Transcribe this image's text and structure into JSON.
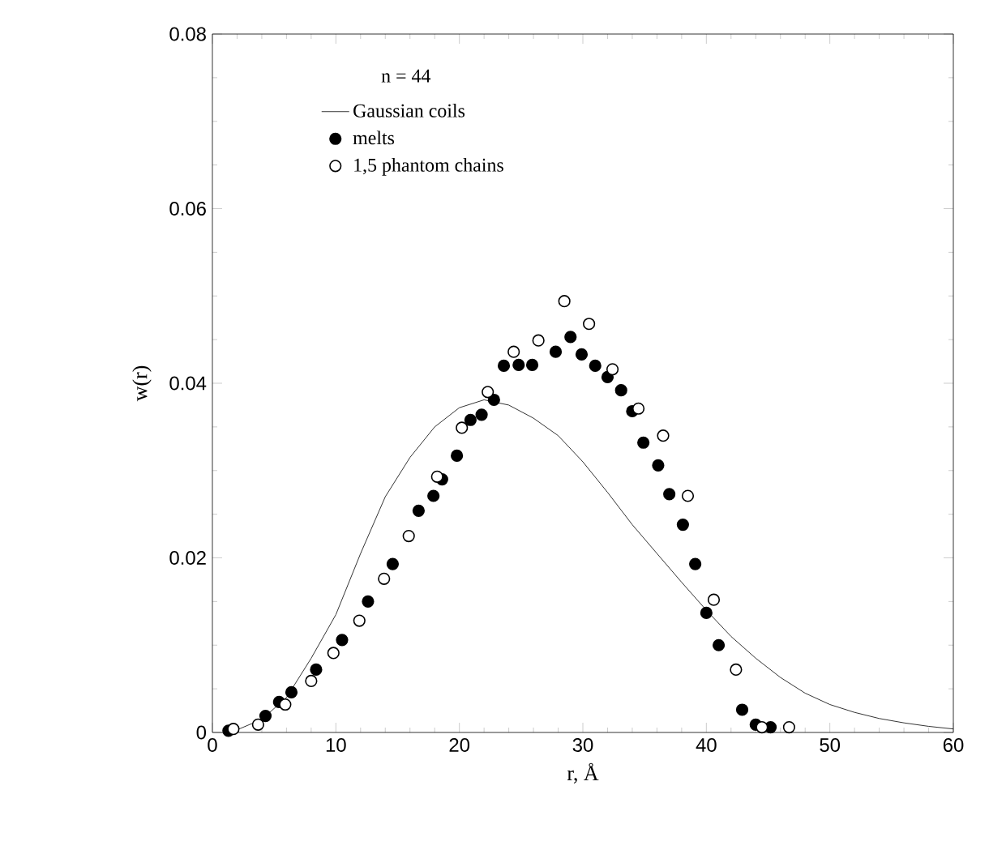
{
  "chart_data": {
    "type": "scatter",
    "xlabel": "r, Å",
    "ylabel": "w(r)",
    "xlim": [
      0,
      60
    ],
    "ylim": [
      0,
      0.08
    ],
    "xticks": [
      0,
      10,
      20,
      30,
      40,
      50,
      60
    ],
    "yticks": [
      0,
      0.02,
      0.04,
      0.06,
      0.08
    ],
    "grid": false,
    "legend": "top left",
    "marker": "circle",
    "annotations": [
      "n = 44"
    ],
    "series": [
      {
        "name": "Gaussian coils",
        "type": "line",
        "color": "#000000",
        "marker": "none",
        "line_style": "solid",
        "x": [
          1.5,
          4,
          6,
          8,
          10,
          12,
          14,
          16,
          18,
          20,
          22,
          24,
          26,
          28,
          30,
          32,
          34,
          36,
          38,
          40,
          42,
          44,
          46,
          48,
          50,
          52,
          54,
          56,
          58,
          60
        ],
        "values": [
          0,
          0.0015,
          0.004,
          0.0085,
          0.0135,
          0.0205,
          0.027,
          0.0315,
          0.035,
          0.0372,
          0.0381,
          0.0375,
          0.036,
          0.034,
          0.031,
          0.0275,
          0.0238,
          0.0205,
          0.0172,
          0.014,
          0.011,
          0.0085,
          0.0063,
          0.0045,
          0.0032,
          0.0023,
          0.0016,
          0.0011,
          0.0007,
          0.0004
        ]
      },
      {
        "name": "melts",
        "color": "#000000",
        "x": [
          1.3,
          4.3,
          5.4,
          6.4,
          8.4,
          10.5,
          12.6,
          14.6,
          16.7,
          17.9,
          18.6,
          19.8,
          20.9,
          21.8,
          22.8,
          23.6,
          24.8,
          25.9,
          27.8,
          29.0,
          29.9,
          31.0,
          32.0,
          33.1,
          34.0,
          34.9,
          36.1,
          37.0,
          38.1,
          39.1,
          40.0,
          41.0,
          42.9,
          44.0,
          45.2
        ],
        "values": [
          0.0002,
          0.0019,
          0.0035,
          0.0046,
          0.0072,
          0.0106,
          0.015,
          0.0193,
          0.0254,
          0.0271,
          0.029,
          0.0317,
          0.0358,
          0.0364,
          0.0381,
          0.042,
          0.0421,
          0.0421,
          0.0436,
          0.0453,
          0.0433,
          0.042,
          0.0407,
          0.0392,
          0.0368,
          0.0332,
          0.0306,
          0.0273,
          0.0238,
          0.0193,
          0.0137,
          0.01,
          0.0026,
          0.0009,
          0.0006
        ]
      },
      {
        "name": "1,5 phantom chains",
        "color": "#ffffff",
        "x": [
          1.7,
          3.7,
          5.9,
          8.0,
          9.8,
          11.9,
          13.9,
          15.9,
          18.2,
          20.2,
          22.3,
          24.4,
          26.4,
          28.5,
          30.5,
          32.4,
          34.5,
          36.5,
          38.5,
          40.6,
          42.4,
          44.5,
          46.7
        ],
        "values": [
          0.0004,
          0.0009,
          0.0032,
          0.0059,
          0.0091,
          0.0128,
          0.0176,
          0.0225,
          0.0293,
          0.0349,
          0.039,
          0.0436,
          0.0449,
          0.0494,
          0.0468,
          0.0416,
          0.0371,
          0.034,
          0.0271,
          0.0152,
          0.0072,
          0.0006,
          0.0006
        ]
      }
    ]
  }
}
